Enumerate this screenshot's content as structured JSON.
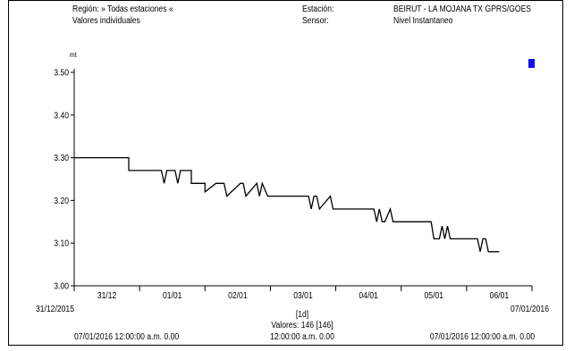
{
  "header": {
    "region_label": "Región: » Todas estaciones «",
    "mode_label": "Valores individuales",
    "station_caption": "Estación:",
    "station_value": "BEIRUT - LA MOJANA TX GPRS/GOES",
    "sensor_caption": "Sensor:",
    "sensor_value": "Nivel Instantaneo"
  },
  "colors": {
    "line": "#000000",
    "marker": "#1010ee"
  },
  "chart_data": {
    "type": "line",
    "title": "",
    "xlabel": "",
    "ylabel": "mt",
    "ylim": [
      3.0,
      3.5
    ],
    "y_ticks": [
      3.0,
      3.1,
      3.2,
      3.3,
      3.4,
      3.5
    ],
    "y_tick_labels": [
      "3.00",
      "3.10",
      "3.20",
      "3.30",
      "3.40",
      "3.50"
    ],
    "xlim": [
      "2015-12-31 00:00",
      "2016-01-07 00:00"
    ],
    "x_ticks": [
      "2016-01-01",
      "2016-01-02",
      "2016-01-03",
      "2016-01-04",
      "2016-01-05",
      "2016-01-06",
      "2016-01-07"
    ],
    "day_labels": [
      {
        "x": "2015-12-31 12:00",
        "label": "31/12"
      },
      {
        "x": "2016-01-01 12:00",
        "label": "01/01"
      },
      {
        "x": "2016-01-02 12:00",
        "label": "02/01"
      },
      {
        "x": "2016-01-03 12:00",
        "label": "03/01"
      },
      {
        "x": "2016-01-04 12:00",
        "label": "04/01"
      },
      {
        "x": "2016-01-05 12:00",
        "label": "05/01"
      },
      {
        "x": "2016-01-06 12:00",
        "label": "06/01"
      }
    ],
    "range_start_label": "31/12/2015",
    "range_end_label": "07/01/2016",
    "interval_label": "[1d]",
    "values_count_label": "Valores: 146 [146]",
    "footer": {
      "left": "07/01/2016 12:00:00 a.m.   0.00",
      "center": "12:00:00 a.m.   0.00",
      "right": "07/01/2016 12:00:00 a.m.   0.00"
    },
    "grid": false,
    "legend": "none",
    "series": [
      {
        "x": [
          "2015-12-31 00:00",
          "2015-12-31 20:00",
          "2015-12-31 20:00",
          "2016-01-01 08:00",
          "2016-01-01 09:00",
          "2016-01-01 10:00",
          "2016-01-01 13:00",
          "2016-01-01 14:00",
          "2016-01-01 15:00",
          "2016-01-01 19:00",
          "2016-01-01 19:00",
          "2016-01-02 00:00",
          "2016-01-02 00:00",
          "2016-01-02 04:00",
          "2016-01-02 07:00",
          "2016-01-02 08:00",
          "2016-01-02 13:00",
          "2016-01-02 14:00",
          "2016-01-02 15:00",
          "2016-01-02 19:00",
          "2016-01-02 20:00",
          "2016-01-02 21:00",
          "2016-01-02 23:00",
          "2016-01-03 00:00",
          "2016-01-03 14:00",
          "2016-01-03 15:00",
          "2016-01-03 16:00",
          "2016-01-03 17:00",
          "2016-01-03 18:00",
          "2016-01-03 22:00",
          "2016-01-03 23:00",
          "2016-01-04 00:00",
          "2016-01-04 14:00",
          "2016-01-04 15:00",
          "2016-01-04 16:00",
          "2016-01-04 17:00",
          "2016-01-04 18:00",
          "2016-01-04 20:00",
          "2016-01-04 21:00",
          "2016-01-04 22:00",
          "2016-01-05 11:00",
          "2016-01-05 12:00",
          "2016-01-05 14:00",
          "2016-01-05 15:00",
          "2016-01-05 16:00",
          "2016-01-05 17:00",
          "2016-01-05 18:00",
          "2016-01-05 19:00",
          "2016-01-06 04:00",
          "2016-01-06 05:00",
          "2016-01-06 06:00",
          "2016-01-06 07:00",
          "2016-01-06 08:00",
          "2016-01-06 12:00"
        ],
        "values": [
          3.3,
          3.3,
          3.27,
          3.27,
          3.24,
          3.27,
          3.27,
          3.24,
          3.27,
          3.27,
          3.24,
          3.24,
          3.22,
          3.24,
          3.24,
          3.21,
          3.24,
          3.24,
          3.21,
          3.24,
          3.21,
          3.24,
          3.21,
          3.21,
          3.21,
          3.18,
          3.21,
          3.21,
          3.18,
          3.21,
          3.18,
          3.18,
          3.18,
          3.15,
          3.18,
          3.15,
          3.15,
          3.18,
          3.15,
          3.15,
          3.15,
          3.11,
          3.11,
          3.14,
          3.11,
          3.14,
          3.11,
          3.11,
          3.11,
          3.08,
          3.11,
          3.11,
          3.08,
          3.08
        ]
      }
    ]
  }
}
